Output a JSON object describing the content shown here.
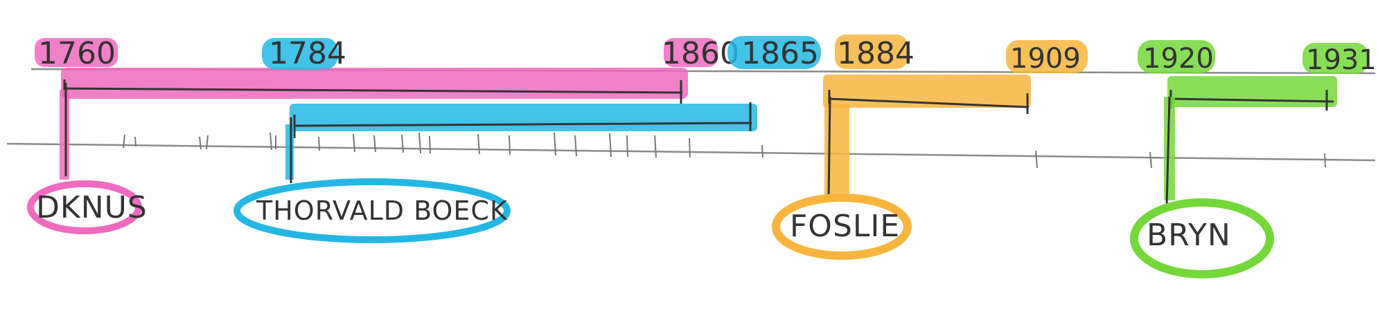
{
  "timeline": {
    "colors": {
      "magenta": "#f06ac0",
      "cyan": "#25b7e3",
      "orange": "#f7b53e",
      "green": "#74d83a",
      "ink": "#333333",
      "pencil": "#8a8a8a"
    },
    "years": {
      "dknus_start": "1760",
      "thorvald_start": "1784",
      "dknus_end": "1860",
      "thorvald_end": "1865",
      "foslie_start": "1884",
      "foslie_end": "1909",
      "bryn_start": "1920",
      "bryn_end": "1931"
    },
    "names": {
      "dknus": "DKNUS",
      "thorvald": "THORVALD BOECK",
      "foslie": "FOSLIE",
      "bryn": "BRYN"
    }
  }
}
